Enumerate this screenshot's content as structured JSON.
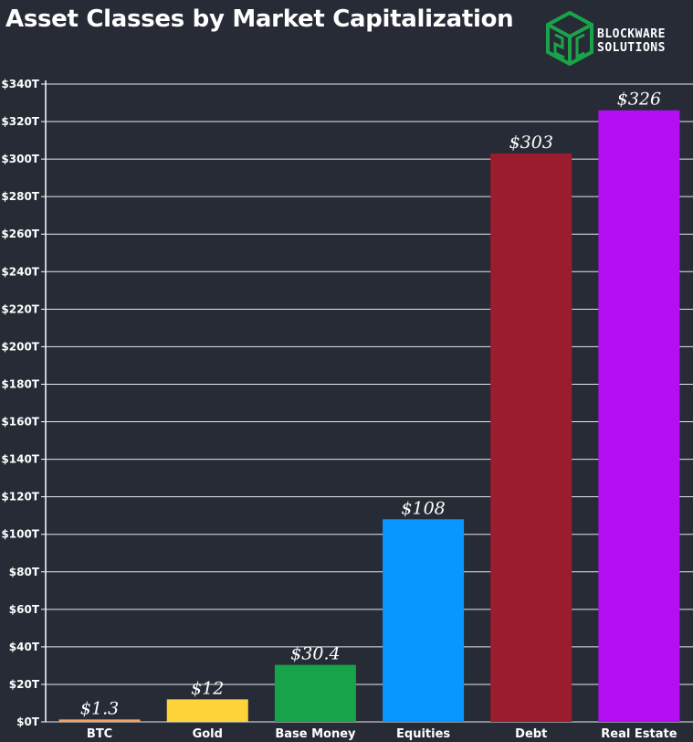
{
  "chart_data": {
    "type": "bar",
    "title": "Asset Classes by Market Capitalization",
    "categories": [
      "BTC",
      "Gold",
      "Base Money",
      "Equities",
      "Debt",
      "Real Estate"
    ],
    "values": [
      1.3,
      12,
      30.4,
      108,
      303,
      326
    ],
    "data_labels": [
      "$1.3",
      "$12",
      "$30.4",
      "$108",
      "$303",
      "$326"
    ],
    "colors": [
      "#f5a25c",
      "#ffd43b",
      "#16a34a",
      "#0897ff",
      "#9b1c2e",
      "#b40ef5"
    ],
    "ylim": [
      0,
      340
    ],
    "yticks": [
      0,
      20,
      40,
      60,
      80,
      100,
      120,
      140,
      160,
      180,
      200,
      220,
      240,
      260,
      280,
      300,
      320,
      340
    ],
    "ytick_labels": [
      "$0T",
      "$20T",
      "$40T",
      "$60T",
      "$80T",
      "$100T",
      "$120T",
      "$140T",
      "$160T",
      "$180T",
      "$200T",
      "$220T",
      "$240T",
      "$260T",
      "$280T",
      "$300T",
      "$320T",
      "$340T"
    ],
    "grid": true,
    "xlabel": "",
    "ylabel": ""
  },
  "logo": {
    "line1": "BLOCKWARE",
    "line2": "SOLUTIONS",
    "color": "#1aa34a"
  }
}
